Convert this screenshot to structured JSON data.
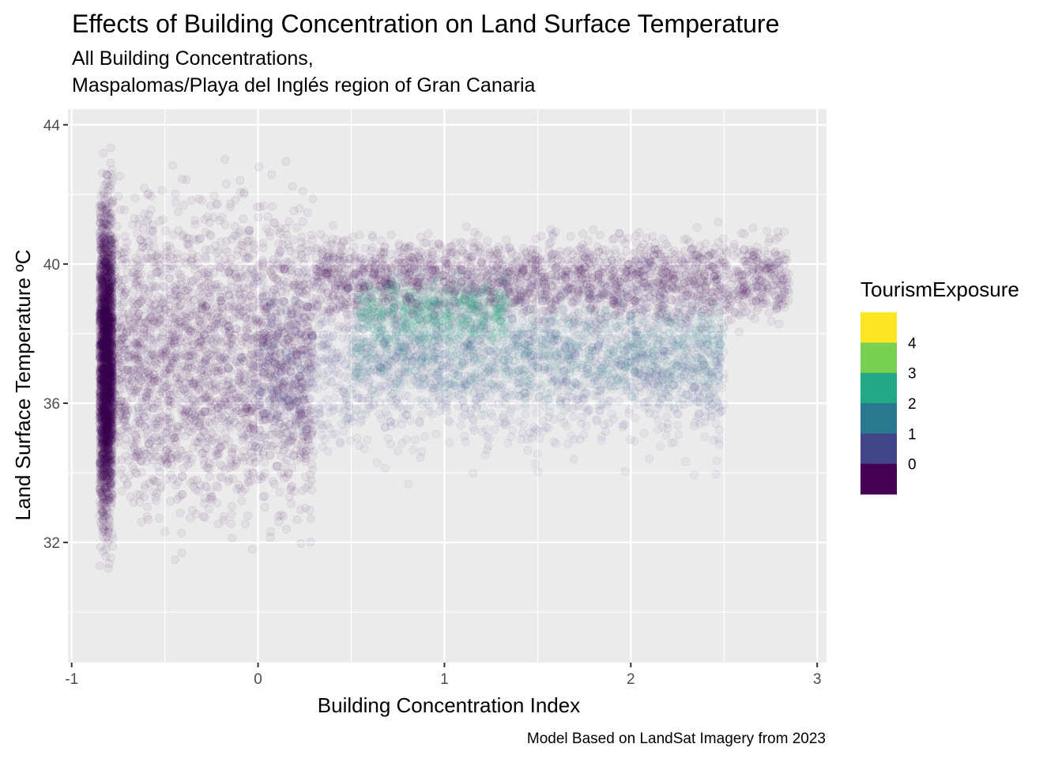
{
  "chart_data": {
    "type": "scatter",
    "title": "Effects of Building Concentration on Land Surface Temperature",
    "subtitle_lines": [
      "All Building Concentrations,",
      "Maspalomas/Playa del Inglés region of Gran Canaria"
    ],
    "xlabel": "Building Concentration Index",
    "ylabel": "Land Surface Temperature ºC",
    "caption": "Model Based on LandSat Imagery from 2023",
    "xlim": [
      -1.02,
      3.05
    ],
    "ylim": [
      28.55,
      44.45
    ],
    "x_ticks": [
      -1,
      0,
      1,
      2,
      3
    ],
    "x_tick_labels": [
      "-1",
      "0",
      "1",
      "2",
      "3"
    ],
    "y_ticks": [
      32,
      36,
      40,
      44
    ],
    "y_tick_labels": [
      "32",
      "36",
      "40",
      "44"
    ],
    "grid": true,
    "point_alpha": 0.05,
    "legend": {
      "title": "TourismExposure",
      "placement": "right",
      "type": "colorsteps",
      "breaks": [
        4,
        3,
        2,
        1,
        0
      ],
      "break_labels": [
        "4",
        "3",
        "2",
        "1",
        "0"
      ],
      "colors": [
        "#FDE725",
        "#7AD151",
        "#22A884",
        "#2A788E",
        "#414487",
        "#440154"
      ]
    },
    "series_clusters": [
      {
        "exposure": 0,
        "x_range": [
          -0.85,
          -0.78
        ],
        "y_range": [
          30.7,
          43.7
        ],
        "n_points": 2400
      },
      {
        "exposure": 0,
        "x_range": [
          -0.8,
          0.3
        ],
        "y_range": [
          31.2,
          43.5
        ],
        "n_points": 2600
      },
      {
        "exposure": 0,
        "x_range": [
          0.3,
          2.85
        ],
        "y_range": [
          37.8,
          41.3
        ],
        "n_points": 2200
      },
      {
        "exposure": 1,
        "x_range": [
          0.0,
          2.5
        ],
        "y_range": [
          33.5,
          40.5
        ],
        "n_points": 1500
      },
      {
        "exposure": 2,
        "x_range": [
          0.5,
          2.5
        ],
        "y_range": [
          35.5,
          39.5
        ],
        "n_points": 1200
      },
      {
        "exposure": 3,
        "x_range": [
          0.55,
          1.35
        ],
        "y_range": [
          37.4,
          40.0
        ],
        "n_points": 500
      }
    ]
  }
}
